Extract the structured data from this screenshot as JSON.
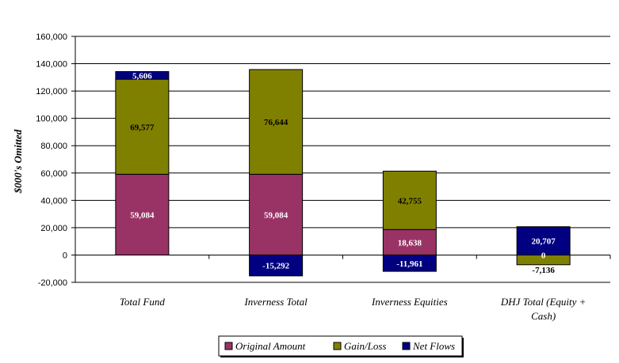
{
  "chart_data": {
    "type": "bar",
    "stacked": true,
    "categories": [
      "Total Fund",
      "Inverness Total",
      "Inverness Equities",
      "DHJ Total (Equity + Cash)"
    ],
    "category_lines": [
      [
        "Total Fund"
      ],
      [
        "Inverness Total"
      ],
      [
        "Inverness Equities"
      ],
      [
        "DHJ Total (Equity +",
        "Cash)"
      ]
    ],
    "series": [
      {
        "name": "Original Amount",
        "color": "#993366",
        "values": [
          59084,
          59084,
          18638,
          0
        ],
        "labels": [
          "59,084",
          "59,084",
          "18,638",
          ""
        ]
      },
      {
        "name": "Gain/Loss",
        "color": "#808000",
        "values": [
          69577,
          76644,
          42755,
          -7136
        ],
        "labels": [
          "69,577",
          "76,644",
          "42,755",
          "-7,136"
        ]
      },
      {
        "name": "Net Flows",
        "color": "#000080",
        "values": [
          5606,
          -15292,
          -11961,
          20707
        ],
        "labels": [
          "5,606",
          "-15,292",
          "-11,961",
          "20,707"
        ]
      }
    ],
    "extra_labels": [
      {
        "category": 3,
        "text": "0"
      }
    ],
    "ylabel": "$000's Omitted",
    "xlabel": "",
    "title": "",
    "ylim": [
      -20000,
      160000
    ],
    "ytick_labels": [
      "-20,000",
      "0",
      "20,000",
      "40,000",
      "60,000",
      "80,000",
      "100,000",
      "120,000",
      "140,000",
      "160,000"
    ],
    "grid": true,
    "legend_position": "bottom"
  }
}
